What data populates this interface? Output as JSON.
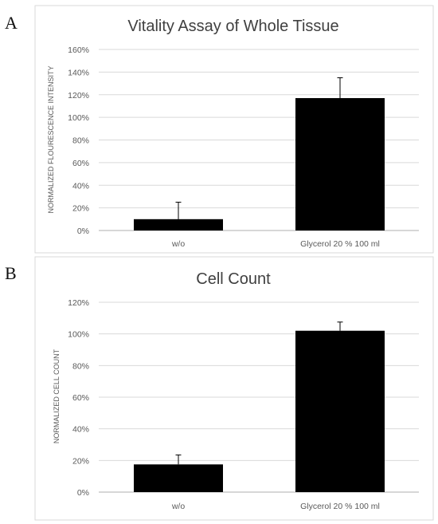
{
  "panels": [
    {
      "letter": "A"
    },
    {
      "letter": "B"
    }
  ],
  "chart_data": [
    {
      "type": "bar",
      "title": "Vitality Assay of Whole Tissue",
      "xlabel": "",
      "ylabel": "NORMALIZED FLOURESCENCE INTENSITY",
      "categories": [
        "w/o",
        "Glycerol 20 % 100 ml"
      ],
      "values": [
        0.1,
        1.17
      ],
      "errors": [
        0.15,
        0.18
      ],
      "ylim": [
        0,
        1.6
      ],
      "yticks": [
        0,
        0.2,
        0.4,
        0.6,
        0.8,
        1.0,
        1.2,
        1.4,
        1.6
      ],
      "ytick_labels": [
        "0%",
        "20%",
        "40%",
        "60%",
        "80%",
        "100%",
        "120%",
        "140%",
        "160%"
      ],
      "grid": true,
      "colors": {
        "bar": "#000000",
        "grid": "#d9d9d9",
        "axis": "#bfbfbf"
      }
    },
    {
      "type": "bar",
      "title": "Cell Count",
      "xlabel": "",
      "ylabel": "NORMALIZED CELL COUNT",
      "categories": [
        "w/o",
        "Glycerol 20 % 100 ml"
      ],
      "values": [
        0.175,
        1.02
      ],
      "errors": [
        0.06,
        0.055
      ],
      "ylim": [
        0,
        1.2
      ],
      "yticks": [
        0,
        0.2,
        0.4,
        0.6,
        0.8,
        1.0,
        1.2
      ],
      "ytick_labels": [
        "0%",
        "20%",
        "40%",
        "60%",
        "80%",
        "100%",
        "120%"
      ],
      "grid": true,
      "colors": {
        "bar": "#000000",
        "grid": "#d9d9d9",
        "axis": "#bfbfbf"
      }
    }
  ]
}
